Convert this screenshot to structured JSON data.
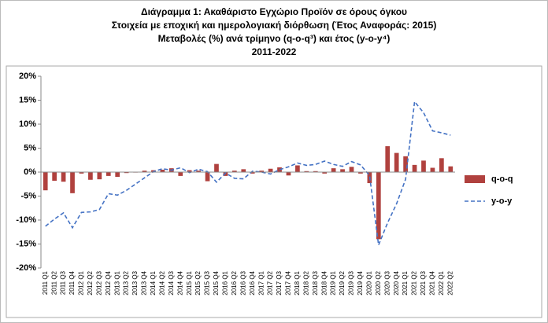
{
  "chart_data": {
    "type": "bar-line",
    "title": [
      "Διάγραμμα 1: Ακαθάριστο Εγχώριο Προϊόν σε όρους όγκου",
      "Στοιχεία με εποχική και ημερολογιακή διόρθωση (Έτος Αναφοράς: 2015)",
      "Μεταβολές (%) ανά τρίμηνο (q-o-q³) και έτος (y-o-y⁴)",
      "2011-2022"
    ],
    "categories": [
      "2011 Q1",
      "2011 Q2",
      "2011 Q3",
      "2011 Q4",
      "2012 Q1",
      "2012 Q2",
      "2012 Q3",
      "2012 Q4",
      "2013 Q1",
      "2013 Q2",
      "2013 Q3",
      "2013 Q4",
      "2014 Q1",
      "2014 Q2",
      "2014 Q3",
      "2014 Q4",
      "2015 Q1",
      "2015 Q2",
      "2015 Q3",
      "2015 Q4",
      "2016 Q1",
      "2016 Q2",
      "2016 Q3",
      "2016 Q4",
      "2017 Q1",
      "2017 Q2",
      "2017 Q3",
      "2017 Q4",
      "2018 Q1",
      "2018 Q2",
      "2018 Q3",
      "2018 Q4",
      "2019 Q1",
      "2019 Q2",
      "2019 Q3",
      "2019 Q4",
      "2020 Q1",
      "2020 Q2",
      "2020 Q3",
      "2020 Q4",
      "2021 Q1",
      "2021 Q2",
      "2021 Q3",
      "2021 Q4",
      "2022 Q1",
      "2022 Q2"
    ],
    "series": [
      {
        "name": "q-o-q",
        "kind": "bar",
        "color": "#b0413e",
        "values": [
          -3.8,
          -1.8,
          -2.0,
          -4.4,
          -0.3,
          -1.6,
          -1.5,
          -0.8,
          -1.0,
          -0.2,
          -0.1,
          0.3,
          0.4,
          0.5,
          0.8,
          -0.8,
          0.4,
          0.3,
          -1.9,
          1.7,
          -0.8,
          0.3,
          0.6,
          -0.3,
          0.3,
          0.7,
          1.0,
          -0.7,
          1.4,
          0.2,
          0.2,
          -0.3,
          0.8,
          0.6,
          1.1,
          -0.3,
          -2.3,
          -14.0,
          5.4,
          4.0,
          3.3,
          1.5,
          2.4,
          0.9,
          2.9,
          1.2
        ]
      },
      {
        "name": "y-o-y",
        "kind": "line",
        "color": "#4472c4",
        "values": [
          -11.3,
          -9.8,
          -8.5,
          -11.6,
          -8.4,
          -8.3,
          -7.8,
          -4.5,
          -4.8,
          -3.8,
          -2.5,
          -1.2,
          0.1,
          0.7,
          0.4,
          0.9,
          -0.1,
          0.6,
          0.1,
          -2.1,
          -0.2,
          -1.3,
          -1.4,
          0.2,
          0.0,
          -0.4,
          0.5,
          1.1,
          1.9,
          1.4,
          1.6,
          2.3,
          1.6,
          1.2,
          2.2,
          1.5,
          -0.7,
          -15.2,
          -10.6,
          -6.6,
          -1.5,
          14.7,
          12.4,
          8.6,
          8.2,
          7.7
        ]
      }
    ],
    "ylim": [
      -20,
      20
    ],
    "yticks": [
      {
        "value": -20,
        "label": "-20%"
      },
      {
        "value": -15,
        "label": "-15%"
      },
      {
        "value": -10,
        "label": "-10%"
      },
      {
        "value": -5,
        "label": "-5%"
      },
      {
        "value": 0,
        "label": "0%"
      },
      {
        "value": 5,
        "label": "5%"
      },
      {
        "value": 10,
        "label": "10%"
      },
      {
        "value": 15,
        "label": "15%"
      },
      {
        "value": 20,
        "label": "20%"
      }
    ],
    "grid": false,
    "legend": "right"
  }
}
